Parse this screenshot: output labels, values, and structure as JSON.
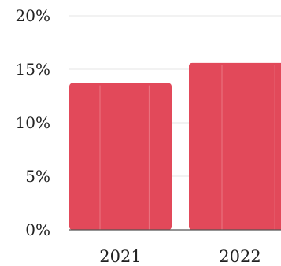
{
  "chart_data": {
    "type": "bar",
    "categories": [
      "2021",
      "2022"
    ],
    "values": [
      13.7,
      15.6
    ],
    "y_ticks": [
      "20%",
      "15%",
      "10%",
      "5%",
      "0%"
    ],
    "y_tick_values": [
      20,
      15,
      10,
      5,
      0
    ],
    "ylim": [
      0,
      20
    ],
    "grid": true,
    "legend": "none",
    "title": "",
    "xlabel": "",
    "ylabel": "",
    "bar_color": "#e2495a",
    "grid_color": "#e6e6e6"
  }
}
